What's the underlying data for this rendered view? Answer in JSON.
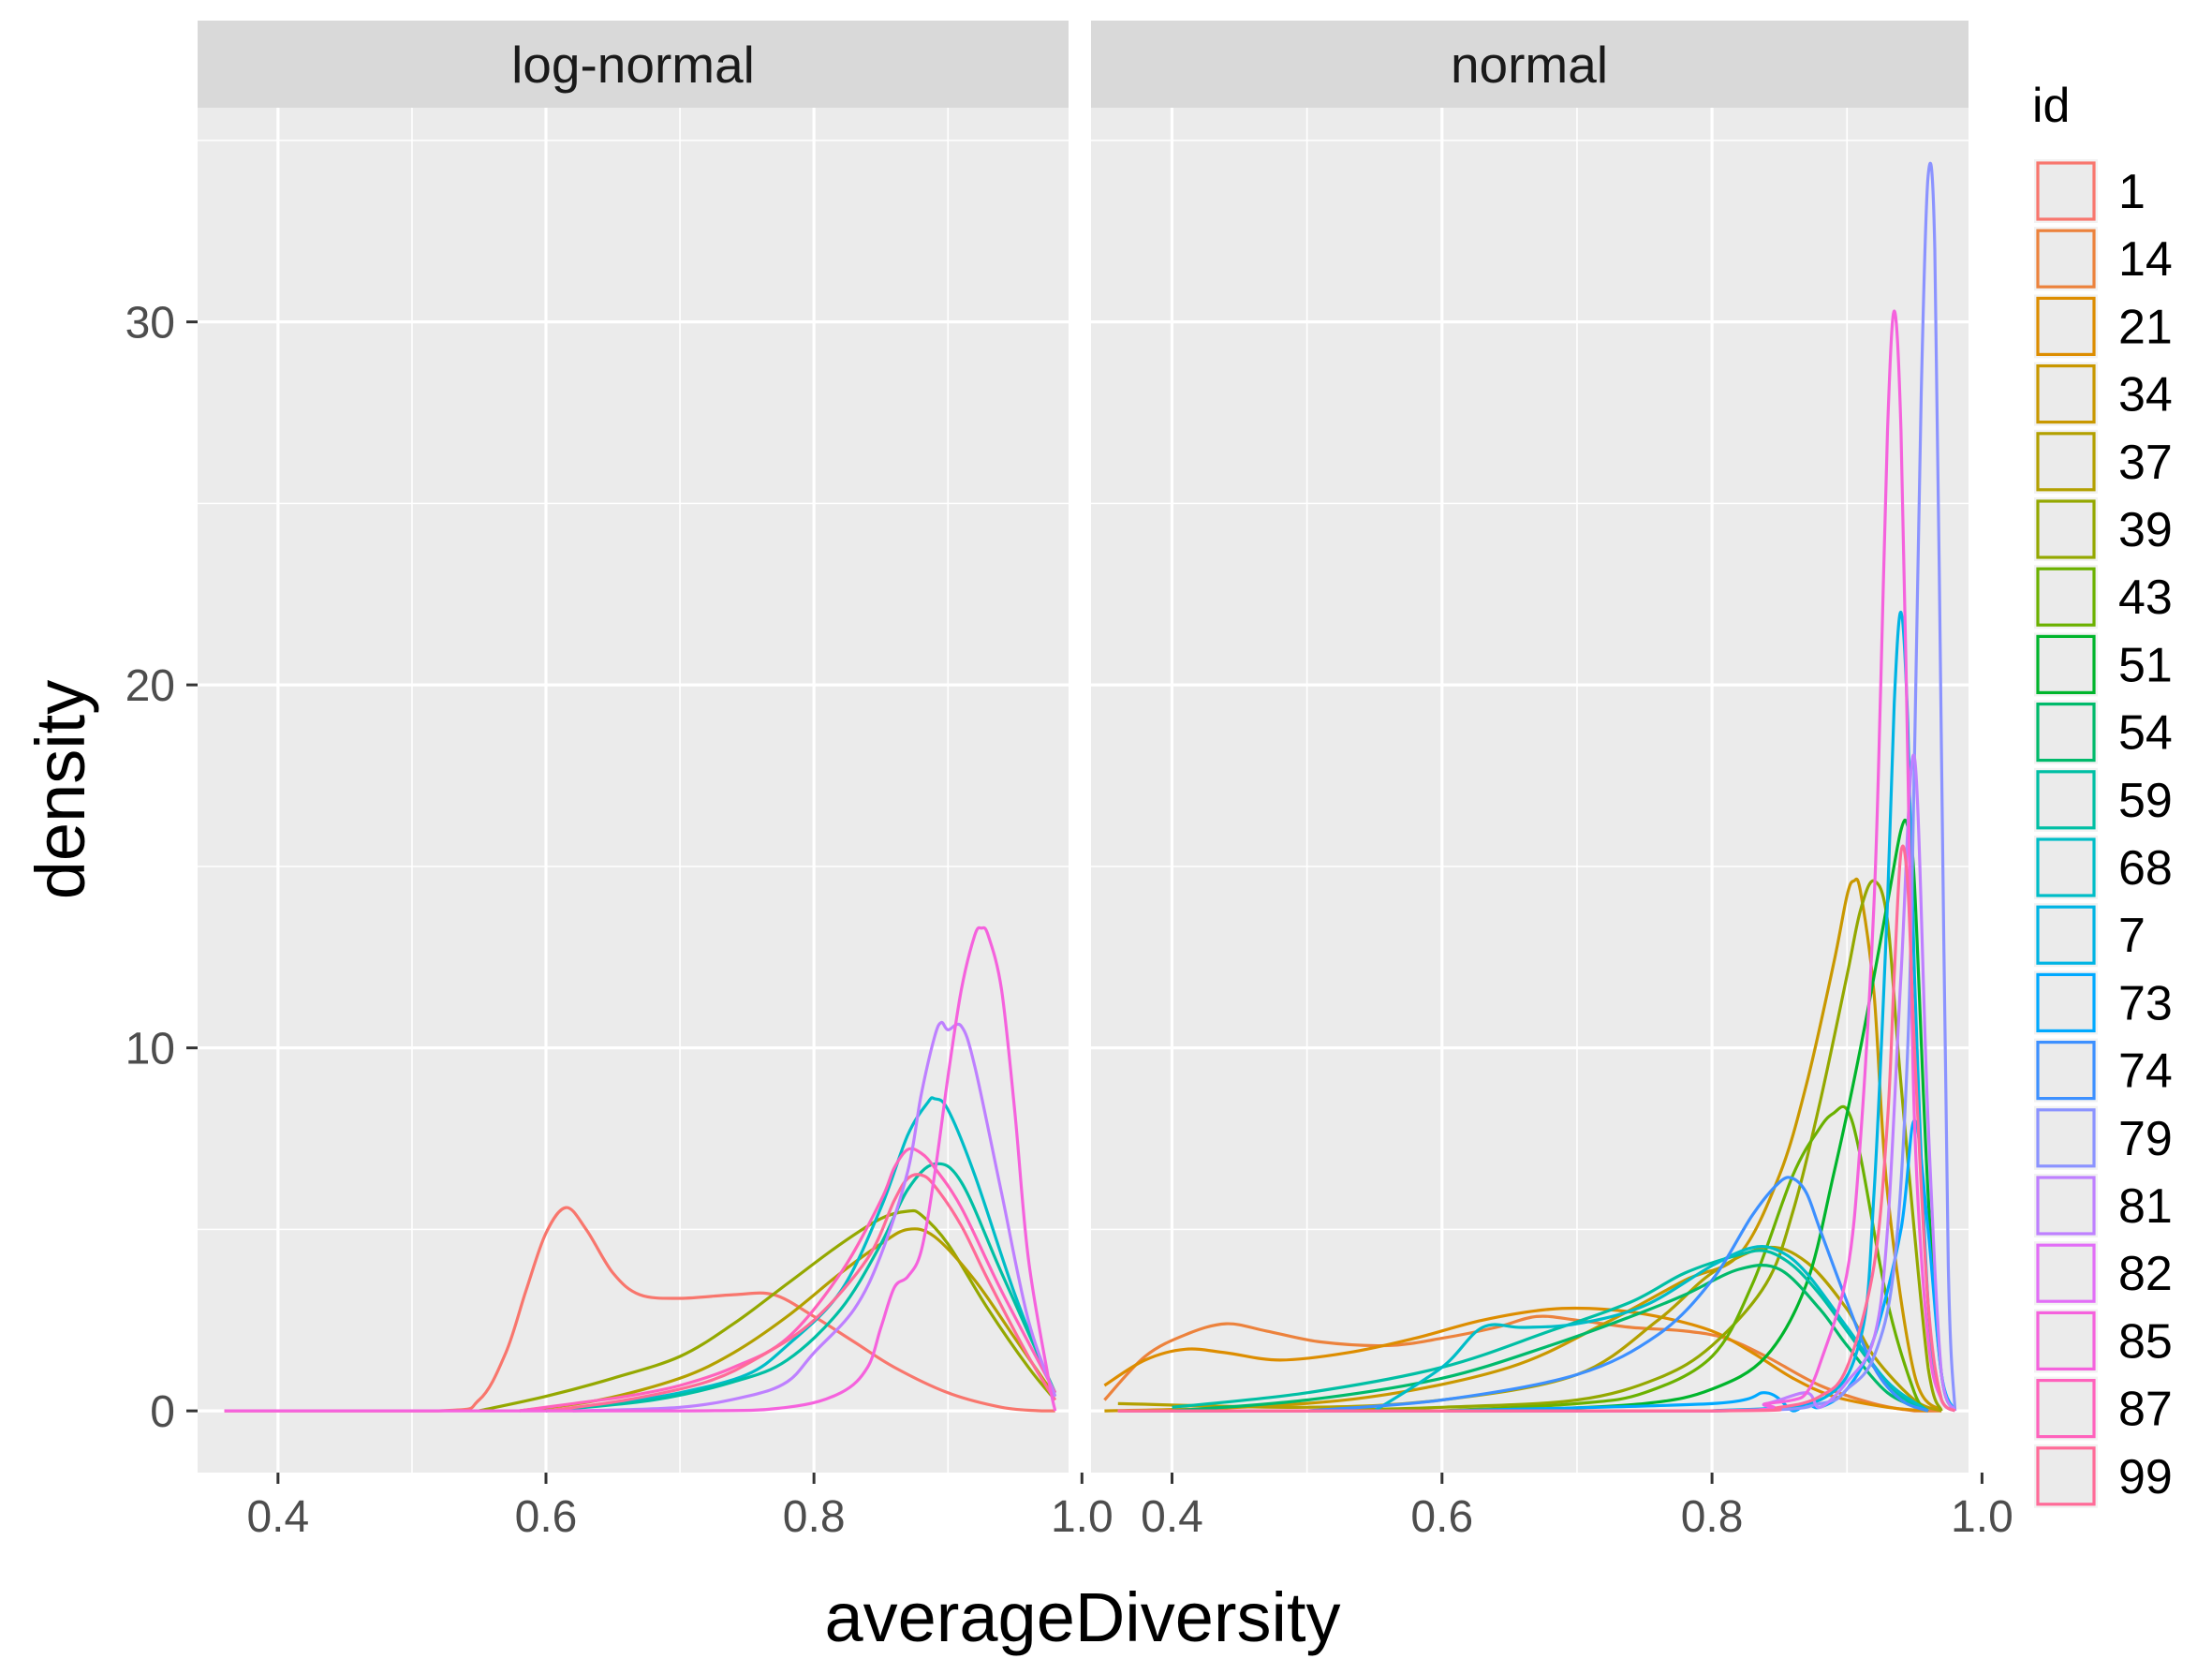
{
  "chart_data": {
    "type": "line",
    "subtype": "density",
    "xlabel": "averageDiversity",
    "ylabel": "density",
    "xlim": [
      0.34,
      0.99
    ],
    "ylim": [
      -1.7,
      35.9
    ],
    "x_ticks": [
      0.4,
      0.6,
      0.8,
      1.0
    ],
    "x_tick_labels": [
      "0.4",
      "0.6",
      "0.8",
      "1.0"
    ],
    "y_ticks": [
      0,
      10,
      20,
      30
    ],
    "y_tick_labels": [
      "0",
      "10",
      "20",
      "30"
    ],
    "grid": true,
    "legend": {
      "title": "id",
      "position": "right"
    },
    "series_colors": {
      "1": "#F8766D",
      "14": "#EC823C",
      "21": "#DD8D00",
      "34": "#C99800",
      "37": "#B3A000",
      "39": "#94A800",
      "43": "#6BB100",
      "51": "#00B52C",
      "54": "#00BA6B",
      "59": "#00BFA4",
      "68": "#00BDC7",
      "7": "#00B4E4",
      "73": "#00A9FF",
      "74": "#3D90FF",
      "79": "#8B93FF",
      "81": "#BE80FF",
      "82": "#E26EF7",
      "85": "#F562DD",
      "87": "#FF62BC",
      "99": "#FF6B98"
    },
    "panels": [
      {
        "label": "log-normal",
        "series": [
          {
            "name": "1",
            "x": [
              0.36,
              0.52,
              0.55,
              0.57,
              0.585,
              0.6,
              0.615,
              0.63,
              0.65,
              0.67,
              0.7,
              0.74,
              0.77,
              0.8,
              0.83,
              0.86,
              0.9,
              0.94,
              0.97,
              0.98
            ],
            "y": [
              0,
              0,
              0.3,
              1.6,
              3.3,
              4.9,
              5.6,
              5,
              3.8,
              3.2,
              3.1,
              3.2,
              3.2,
              2.6,
              1.9,
              1.2,
              0.5,
              0.1,
              0,
              0
            ]
          },
          {
            "name": "39",
            "x": [
              0.55,
              0.6,
              0.65,
              0.7,
              0.74,
              0.78,
              0.82,
              0.85,
              0.87,
              0.88,
              0.9,
              0.93,
              0.96,
              0.98
            ],
            "y": [
              0,
              0.4,
              0.9,
              1.5,
              2.4,
              3.5,
              4.6,
              5.3,
              5.5,
              5.4,
              4.6,
              2.8,
              1.2,
              0.3
            ]
          },
          {
            "name": "37",
            "x": [
              0.58,
              0.64,
              0.7,
              0.74,
              0.78,
              0.82,
              0.85,
              0.87,
              0.89,
              0.92,
              0.95,
              0.98
            ],
            "y": [
              0,
              0.3,
              0.9,
              1.6,
              2.6,
              3.8,
              4.6,
              5,
              4.8,
              3.6,
              2,
              0.4
            ]
          },
          {
            "name": "68",
            "x": [
              0.6,
              0.65,
              0.7,
              0.75,
              0.78,
              0.82,
              0.85,
              0.87,
              0.885,
              0.89,
              0.9,
              0.92,
              0.95,
              0.98
            ],
            "y": [
              0,
              0.2,
              0.5,
              1,
              1.8,
              3.3,
              5.6,
              7.6,
              8.5,
              8.6,
              8.3,
              6.5,
              3.2,
              0.4
            ]
          },
          {
            "name": "59",
            "x": [
              0.6,
              0.68,
              0.74,
              0.78,
              0.82,
              0.85,
              0.87,
              0.89,
              0.91,
              0.94,
              0.98
            ],
            "y": [
              0,
              0.3,
              0.8,
              1.4,
              2.8,
              4.6,
              6.1,
              6.8,
              6.3,
              3.8,
              0.5
            ]
          },
          {
            "name": "87",
            "x": [
              0.58,
              0.62,
              0.66,
              0.7,
              0.74,
              0.78,
              0.82,
              0.85,
              0.86,
              0.87,
              0.88,
              0.89,
              0.91,
              0.94,
              0.98
            ],
            "y": [
              0,
              0.2,
              0.4,
              0.7,
              1.2,
              2,
              3.8,
              5.8,
              6.7,
              7.2,
              7.1,
              6.7,
              5.6,
              3.3,
              0.5
            ]
          },
          {
            "name": "99",
            "x": [
              0.6,
              0.66,
              0.72,
              0.76,
              0.8,
              0.84,
              0.86,
              0.87,
              0.88,
              0.89,
              0.91,
              0.93,
              0.96,
              0.98
            ],
            "y": [
              0,
              0.3,
              0.8,
              1.5,
              2.5,
              4.2,
              5.8,
              6.4,
              6.5,
              6.2,
              5.1,
              3.6,
              1.5,
              0.3
            ]
          },
          {
            "name": "81",
            "x": [
              0.62,
              0.7,
              0.75,
              0.78,
              0.8,
              0.83,
              0.85,
              0.87,
              0.88,
              0.89,
              0.895,
              0.9,
              0.91,
              0.92,
              0.94,
              0.96,
              0.98
            ],
            "y": [
              0,
              0.1,
              0.4,
              0.8,
              1.6,
              2.8,
              4.3,
              6.6,
              8.7,
              10.3,
              10.7,
              10.5,
              10.6,
              9.5,
              6,
              2.5,
              0.4
            ]
          },
          {
            "name": "85",
            "x": [
              0.36,
              0.7,
              0.78,
              0.82,
              0.84,
              0.85,
              0.86,
              0.87,
              0.88,
              0.89,
              0.9,
              0.91,
              0.92,
              0.925,
              0.93,
              0.94,
              0.95,
              0.96,
              0.975,
              0.98
            ],
            "y": [
              0,
              0,
              0.1,
              0.5,
              1.2,
              2.3,
              3.4,
              3.7,
              4.4,
              6.5,
              9.2,
              11.6,
              13.1,
              13.3,
              13.1,
              11.6,
              8.2,
              4.2,
              0.9,
              0
            ]
          }
        ]
      },
      {
        "label": "normal",
        "series": [
          {
            "name": "14",
            "x": [
              0.35,
              0.38,
              0.41,
              0.44,
              0.47,
              0.51,
              0.56,
              0.6,
              0.64,
              0.67,
              0.7,
              0.74,
              0.78,
              0.81,
              0.84,
              0.88,
              0.92,
              0.95,
              0.97
            ],
            "y": [
              0.3,
              1.5,
              2.1,
              2.4,
              2.2,
              1.9,
              1.8,
              2,
              2.3,
              2.6,
              2.5,
              2.3,
              2.2,
              2,
              1.5,
              0.7,
              0.2,
              0,
              0
            ]
          },
          {
            "name": "21",
            "x": [
              0.35,
              0.38,
              0.41,
              0.44,
              0.48,
              0.53,
              0.58,
              0.63,
              0.68,
              0.72,
              0.76,
              0.8,
              0.83,
              0.86,
              0.89,
              0.93,
              0.96
            ],
            "y": [
              0.7,
              1.4,
              1.7,
              1.6,
              1.4,
              1.6,
              2,
              2.5,
              2.8,
              2.8,
              2.6,
              2.2,
              1.6,
              0.9,
              0.4,
              0.1,
              0
            ]
          },
          {
            "name": "34",
            "x": [
              0.35,
              0.45,
              0.55,
              0.65,
              0.72,
              0.78,
              0.82,
              0.85,
              0.87,
              0.89,
              0.9,
              0.905,
              0.91,
              0.92,
              0.93,
              0.95,
              0.97
            ],
            "y": [
              0,
              0.1,
              0.4,
              1.2,
              2.4,
              3.6,
              4.3,
              6.5,
              9,
              12.3,
              14.2,
              14.6,
              14.3,
              11.5,
              6,
              1,
              0
            ]
          },
          {
            "name": "37",
            "x": [
              0.36,
              0.5,
              0.6,
              0.7,
              0.76,
              0.8,
              0.84,
              0.87,
              0.9,
              0.92,
              0.95,
              0.97
            ],
            "y": [
              0.2,
              0.1,
              0.3,
              1,
              2.5,
              3.8,
              4.5,
              4.1,
              2.8,
              1.5,
              0.3,
              0
            ]
          },
          {
            "name": "39",
            "x": [
              0.5,
              0.6,
              0.7,
              0.76,
              0.8,
              0.84,
              0.86,
              0.88,
              0.9,
              0.91,
              0.92,
              0.93,
              0.94,
              0.96,
              0.97
            ],
            "y": [
              0,
              0.1,
              0.3,
              0.9,
              1.8,
              3.5,
              5.5,
              8.5,
              12,
              13.8,
              14.6,
              13.5,
              9,
              1.2,
              0
            ]
          },
          {
            "name": "43",
            "x": [
              0.6,
              0.7,
              0.75,
              0.8,
              0.83,
              0.86,
              0.88,
              0.89,
              0.9,
              0.91,
              0.93,
              0.95,
              0.96
            ],
            "y": [
              0,
              0.2,
              0.5,
              1.5,
              3.5,
              6.5,
              7.8,
              8.2,
              8.3,
              7,
              3,
              0.5,
              0
            ]
          },
          {
            "name": "51",
            "x": [
              0.65,
              0.75,
              0.8,
              0.84,
              0.87,
              0.89,
              0.91,
              0.93,
              0.94,
              0.945,
              0.95,
              0.96,
              0.97,
              0.98
            ],
            "y": [
              0,
              0.2,
              0.6,
              1.5,
              3.5,
              6.5,
              10,
              14,
              16,
              16.1,
              14.5,
              6,
              1,
              0
            ]
          },
          {
            "name": "54",
            "x": [
              0.4,
              0.5,
              0.6,
              0.68,
              0.74,
              0.78,
              0.82,
              0.85,
              0.88,
              0.9,
              0.93,
              0.96
            ],
            "y": [
              0,
              0.3,
              0.9,
              1.8,
              2.6,
              3.2,
              3.9,
              3.9,
              2.8,
              1.8,
              0.5,
              0
            ]
          },
          {
            "name": "59",
            "x": [
              0.4,
              0.5,
              0.6,
              0.68,
              0.74,
              0.78,
              0.82,
              0.84,
              0.86,
              0.88,
              0.9,
              0.92,
              0.94,
              0.96
            ],
            "y": [
              0.1,
              0.5,
              1.2,
              2.2,
              3,
              3.8,
              4.3,
              4.4,
              4,
              3.2,
              2.2,
              1.2,
              0.4,
              0
            ]
          },
          {
            "name": "68",
            "x": [
              0.55,
              0.6,
              0.63,
              0.66,
              0.7,
              0.75,
              0.8,
              0.83,
              0.85,
              0.87,
              0.9,
              0.93,
              0.96
            ],
            "y": [
              0,
              1.2,
              2.3,
              2.3,
              2.4,
              2.9,
              4,
              4.5,
              4.4,
              3.8,
              2.3,
              0.8,
              0
            ]
          },
          {
            "name": "7",
            "x": [
              0.8,
              0.88,
              0.91,
              0.92,
              0.93,
              0.935,
              0.94,
              0.945,
              0.95,
              0.96,
              0.97,
              0.98
            ],
            "y": [
              0,
              0.3,
              2,
              6,
              14,
              19.5,
              22,
              19,
              12,
              3,
              0.3,
              0
            ]
          },
          {
            "name": "74",
            "x": [
              0.5,
              0.6,
              0.7,
              0.76,
              0.8,
              0.83,
              0.85,
              0.86,
              0.87,
              0.88,
              0.9,
              0.92,
              0.94,
              0.96
            ],
            "y": [
              0,
              0.3,
              1,
              2.1,
              3.6,
              5.4,
              6.3,
              6.4,
              6,
              5,
              3,
              1.2,
              0.3,
              0
            ]
          },
          {
            "name": "73",
            "x": [
              0.6,
              0.8,
              0.84,
              0.86,
              0.87,
              0.88,
              0.9,
              0.92,
              0.94,
              0.95,
              0.96,
              0.97,
              0.98
            ],
            "y": [
              0,
              0.2,
              0.5,
              0,
              0.2,
              0.1,
              0.6,
              2,
              5,
              8,
              5,
              1,
              0
            ]
          },
          {
            "name": "79",
            "x": [
              0.36,
              0.8,
              0.88,
              0.9,
              0.92,
              0.935,
              0.945,
              0.95,
              0.955,
              0.96,
              0.965,
              0.97,
              0.975,
              0.98
            ],
            "y": [
              0,
              0,
              0.2,
              0.6,
              1.5,
              4,
              10,
              18,
              28,
              34,
              32,
              18,
              4,
              0
            ]
          },
          {
            "name": "81",
            "x": [
              0.36,
              0.8,
              0.84,
              0.87,
              0.88,
              0.9,
              0.92,
              0.93,
              0.94,
              0.95,
              0.96,
              0.97,
              0.98
            ],
            "y": [
              0,
              0,
              0.2,
              0.5,
              0.1,
              0.8,
              2,
              5,
              12,
              18,
              8,
              1,
              0
            ]
          },
          {
            "name": "85",
            "x": [
              0.36,
              0.8,
              0.84,
              0.86,
              0.87,
              0.88,
              0.9,
              0.91,
              0.92,
              0.925,
              0.93,
              0.935,
              0.94,
              0.945,
              0.95,
              0.96,
              0.97,
              0.98
            ],
            "y": [
              0,
              0,
              0.2,
              0.3,
              0.5,
              1.3,
              3.8,
              7.5,
              14,
              20,
              27,
              30.3,
              27,
              18,
              8,
              2,
              0.3,
              0
            ]
          },
          {
            "name": "99",
            "x": [
              0.36,
              0.8,
              0.85,
              0.88,
              0.9,
              0.92,
              0.93,
              0.935,
              0.94,
              0.945,
              0.95,
              0.96,
              0.97,
              0.98
            ],
            "y": [
              0,
              0,
              0.1,
              0.4,
              1.2,
              4,
              8,
              12,
              15.4,
              14.5,
              10,
              3,
              0.3,
              0
            ]
          }
        ]
      }
    ]
  }
}
